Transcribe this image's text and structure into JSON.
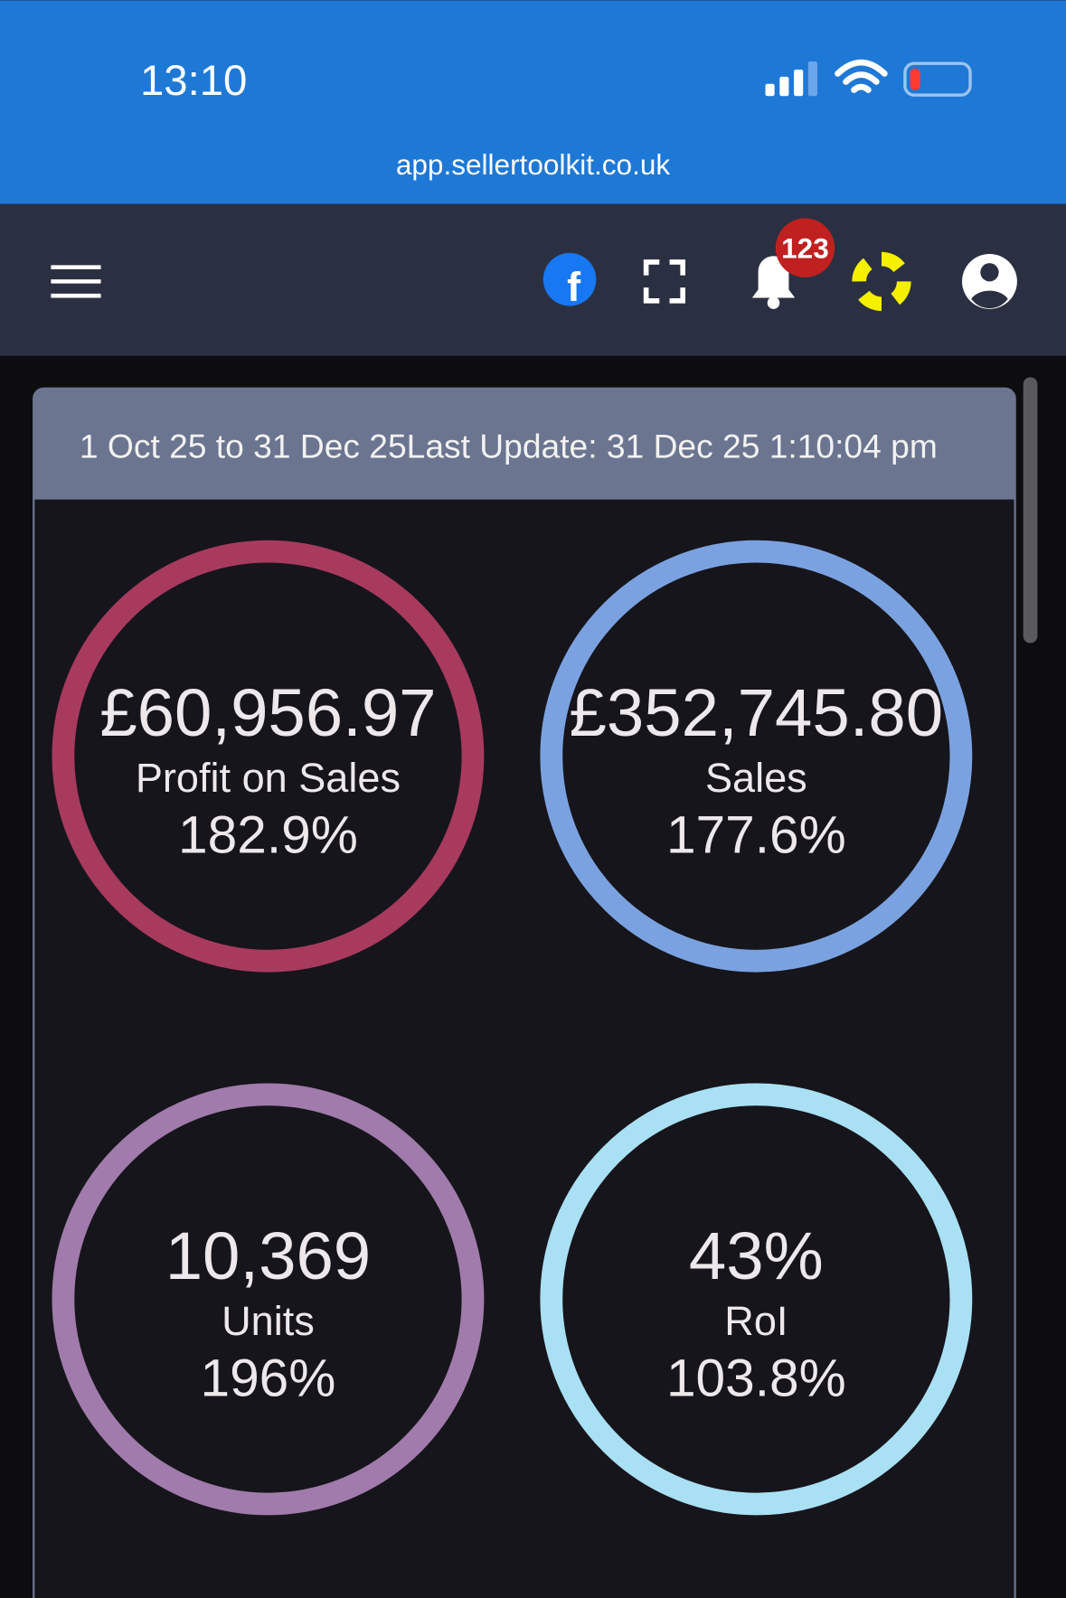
{
  "status_bar": {
    "time": "13:10",
    "url": "app.sellertoolkit.co.uk"
  },
  "nav": {
    "notification_count": "123"
  },
  "panel": {
    "date_range": "1 Oct 25 to 31 Dec 25",
    "last_update": "Last Update: 31 Dec 25 1:10:04 pm",
    "cards": [
      {
        "value": "£60,956.97",
        "label": "Profit on Sales",
        "change": "182.9%",
        "color": "#a83a5e"
      },
      {
        "value": "£352,745.80",
        "label": "Sales",
        "change": "177.6%",
        "color": "#7ba2e0"
      },
      {
        "value": "10,369",
        "label": "Units",
        "change": "196%",
        "color": "#a07bab"
      },
      {
        "value": "43%",
        "label": "RoI",
        "change": "103.8%",
        "color": "#a9e0f3"
      }
    ]
  }
}
